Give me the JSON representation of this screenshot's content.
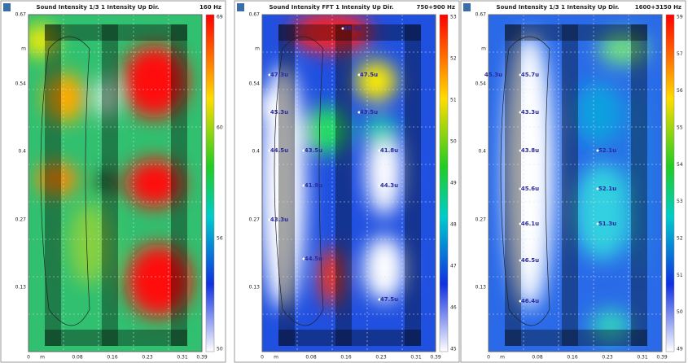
{
  "panels": [
    {
      "title": "Sound Intensity 1/3 1 Intensity Up Dir.",
      "band": "160 Hz",
      "yticks": [
        "0.67",
        "m",
        "0.54",
        "0.4",
        "0.27",
        "0.13"
      ],
      "xticks": [
        "0",
        "m",
        "0.08",
        "0.16",
        "0.23",
        "0.31",
        "0.39"
      ],
      "colorbar": [
        "69",
        "60",
        "56",
        "50"
      ],
      "points": []
    },
    {
      "title": "Sound Intensity FFT 1 Intensity Up Dir.",
      "band": "750+900 Hz",
      "yticks": [
        "0.67",
        "m",
        "0.54",
        "0.4",
        "0.27",
        "0.13"
      ],
      "xticks": [
        "0",
        "m",
        "0.08",
        "0.16",
        "0.23",
        "0.31",
        "0.39"
      ],
      "colorbar": [
        "53",
        "52",
        "51",
        "50",
        "49",
        "48",
        "47",
        "46",
        "45"
      ],
      "points": [
        "48.2u",
        "47.3u",
        "47.5u",
        "45.3u",
        "43.5u",
        "44.5u",
        "43.5u",
        "41.8u",
        "41.9u",
        "44.3u",
        "43.3u",
        "44.5u",
        "47.5u"
      ]
    },
    {
      "title": "Sound Intensity 1/3 1 Intensity Up Dir.",
      "band": "1600+3150 Hz",
      "yticks": [
        "0.67",
        "m",
        "0.54",
        "0.4",
        "0.27",
        "0.13"
      ],
      "xticks": [
        "0",
        "m",
        "0.08",
        "0.16",
        "0.23",
        "0.31",
        "0.39"
      ],
      "colorbar": [
        "59",
        "57",
        "56",
        "55",
        "54",
        "53",
        "52",
        "51",
        "50",
        "49"
      ],
      "points": [
        "45.7u",
        "45.3u",
        "43.3u",
        "43.8u",
        "45.6u",
        "46.1u",
        "46.5u",
        "46.4u",
        "52.1u",
        "52.1u",
        "51.3u"
      ]
    }
  ]
}
